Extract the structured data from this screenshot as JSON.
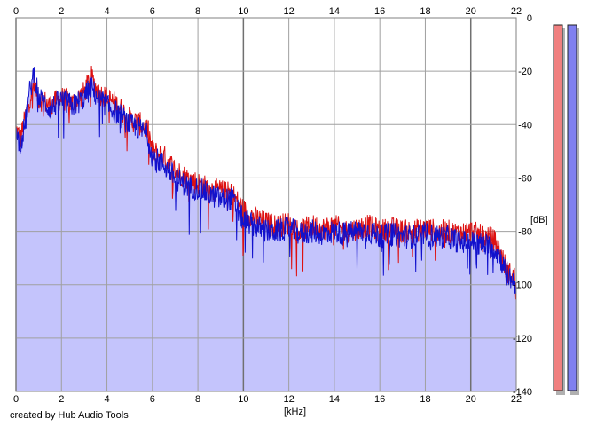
{
  "chart_data": {
    "type": "area",
    "xlabel": "[kHz]",
    "ylabel": "[dB]",
    "xlim": [
      0,
      22
    ],
    "ylim": [
      -140,
      0
    ],
    "x_ticks": [
      0,
      2,
      4,
      6,
      8,
      10,
      12,
      14,
      16,
      18,
      20,
      22
    ],
    "y_ticks": [
      0,
      -20,
      -40,
      -60,
      -80,
      -100,
      -120,
      -140
    ],
    "grid": true,
    "series": [
      {
        "color": "#dd1111",
        "x": [
          0,
          0.2,
          0.4,
          0.6,
          0.8,
          1.0,
          1.5,
          2.0,
          2.5,
          3.0,
          3.3,
          3.6,
          4.0,
          4.5,
          5.0,
          5.5,
          5.8,
          6.0,
          6.5,
          7.0,
          7.5,
          8.0,
          8.5,
          9.0,
          9.5,
          10.0,
          10.5,
          11.0,
          11.5,
          12.0,
          12.5,
          13.0,
          13.5,
          14.0,
          14.5,
          15.0,
          15.5,
          16.0,
          16.5,
          17.0,
          17.5,
          18.0,
          18.5,
          19.0,
          19.5,
          20.0,
          20.5,
          21.0,
          21.3,
          21.6,
          22.0
        ],
        "values": [
          -42,
          -45,
          -38,
          -30,
          -25,
          -30,
          -33,
          -30,
          -32,
          -28,
          -22,
          -28,
          -30,
          -33,
          -38,
          -40,
          -42,
          -50,
          -52,
          -57,
          -60,
          -62,
          -64,
          -65,
          -66,
          -72,
          -75,
          -77,
          -78,
          -77,
          -80,
          -78,
          -79,
          -78,
          -80,
          -79,
          -78,
          -80,
          -79,
          -80,
          -80,
          -79,
          -80,
          -80,
          -81,
          -80,
          -82,
          -83,
          -88,
          -95,
          -98
        ]
      },
      {
        "color": "#1111cc",
        "x": [
          0,
          0.2,
          0.4,
          0.6,
          0.8,
          1.0,
          1.5,
          2.0,
          2.5,
          3.0,
          3.3,
          3.6,
          4.0,
          4.5,
          5.0,
          5.5,
          5.8,
          6.0,
          6.5,
          7.0,
          7.5,
          8.0,
          8.5,
          9.0,
          9.5,
          10.0,
          10.5,
          11.0,
          11.5,
          12.0,
          12.5,
          13.0,
          13.5,
          14.0,
          14.5,
          15.0,
          15.5,
          16.0,
          16.5,
          17.0,
          17.5,
          18.0,
          18.5,
          19.0,
          19.5,
          20.0,
          20.5,
          21.0,
          21.3,
          21.6,
          22.0
        ],
        "values": [
          -44,
          -47,
          -40,
          -28,
          -20,
          -30,
          -34,
          -31,
          -33,
          -30,
          -26,
          -30,
          -33,
          -36,
          -40,
          -42,
          -44,
          -52,
          -55,
          -60,
          -63,
          -64,
          -66,
          -68,
          -68,
          -76,
          -78,
          -80,
          -80,
          -79,
          -81,
          -80,
          -81,
          -80,
          -81,
          -80,
          -80,
          -82,
          -81,
          -82,
          -82,
          -81,
          -82,
          -82,
          -84,
          -84,
          -85,
          -86,
          -90,
          -96,
          -100
        ]
      }
    ],
    "level_meters": [
      {
        "color": "#f08080"
      },
      {
        "color": "#8080f0"
      }
    ]
  },
  "colors": {
    "fill": "#c4c4fc",
    "grid": "#a0a0a0",
    "axis": "#808080"
  },
  "credit": "created by Hub Audio Tools"
}
